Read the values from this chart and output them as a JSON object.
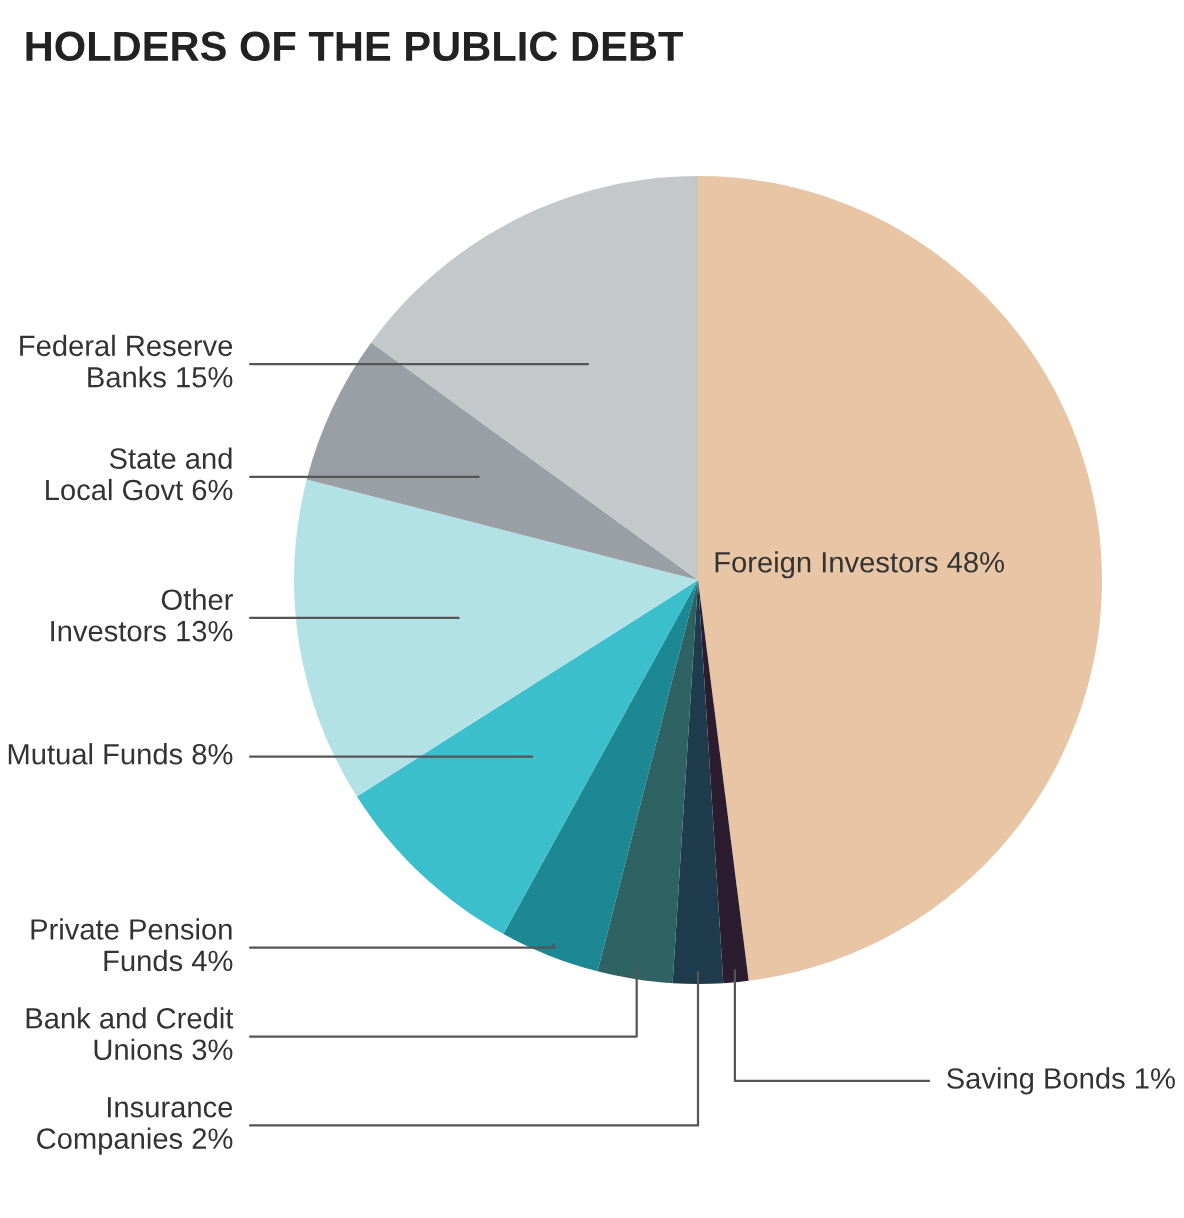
{
  "chart_data": {
    "type": "pie",
    "title": "HOLDERS OF THE PUBLIC DEBT",
    "categories": [
      "Foreign Investors",
      "Saving Bonds",
      "Insurance\nCompanies",
      "Bank and Credit\nUnions",
      "Private Pension\nFunds",
      "Mutual Funds",
      "Other\nInvestors",
      "State and\nLocal Govt",
      "Federal Reserve\nBanks"
    ],
    "values": [
      48,
      1,
      2,
      3,
      4,
      8,
      13,
      6,
      15
    ],
    "value_labels": [
      "48%",
      "1%",
      "2%",
      "3%",
      "4%",
      "8%",
      "13%",
      "6%",
      "15%"
    ],
    "colors": [
      "#e8c5a5",
      "#2b1c30",
      "#1f3c4c",
      "#2f6262",
      "#1b8893",
      "#3bbfcc",
      "#b3e2e6",
      "#9a9fa5",
      "#c5c8cb"
    ],
    "legend": false
  }
}
